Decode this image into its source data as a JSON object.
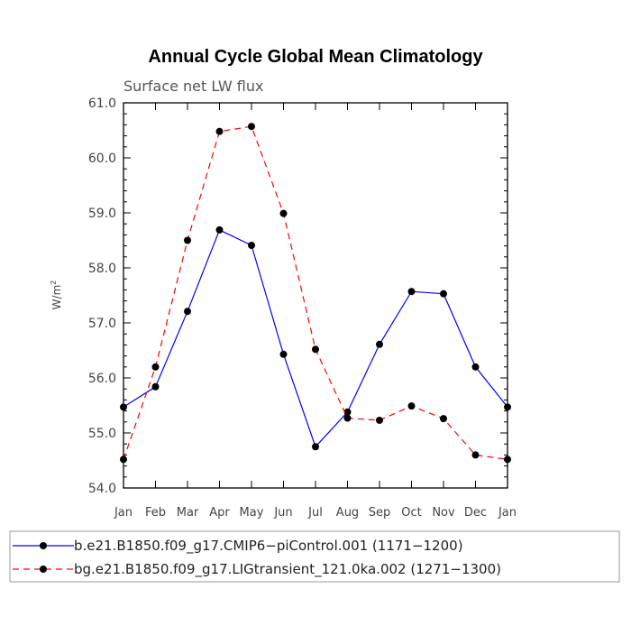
{
  "chart_data": {
    "type": "line",
    "title": "Annual Cycle Global Mean Climatology",
    "subtitle": "Surface net LW flux",
    "ylabel": "W/m",
    "ylabel_superscript": "2",
    "ylim": [
      54.0,
      61.0
    ],
    "yticks": [
      "54.0",
      "55.0",
      "56.0",
      "57.0",
      "58.0",
      "59.0",
      "60.0",
      "61.0"
    ],
    "categories": [
      "Jan",
      "Feb",
      "Mar",
      "Apr",
      "May",
      "Jun",
      "Jul",
      "Aug",
      "Sep",
      "Oct",
      "Nov",
      "Dec",
      "Jan"
    ],
    "grid": false,
    "legend_position": "bottom",
    "series": [
      {
        "name": "b.e21.B1850.f09_g17.CMIP6−piControl.001 (1171−1200)",
        "color": "#0000ff",
        "style": "solid",
        "values": [
          55.47,
          55.84,
          57.21,
          58.69,
          58.41,
          56.43,
          54.75,
          55.38,
          56.61,
          57.57,
          57.53,
          56.2,
          55.47
        ]
      },
      {
        "name": "bg.e21.B1850.f09_g17.LIGtransient_121.0ka.002 (1271−1300)",
        "color": "#ff0000",
        "style": "dashed",
        "values": [
          54.52,
          56.2,
          58.5,
          60.48,
          60.57,
          58.99,
          56.52,
          55.27,
          55.23,
          55.49,
          55.26,
          54.6,
          54.52
        ]
      }
    ]
  }
}
